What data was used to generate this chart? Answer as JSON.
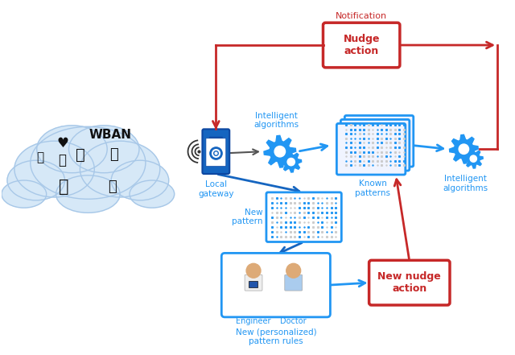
{
  "bg_color": "#ffffff",
  "blue_color": "#1565C0",
  "light_blue": "#2196F3",
  "red_color": "#C62828",
  "cloud_color": "#D6E8F7",
  "cloud_border": "#A8C8E8",
  "cloud_text": "WBAN",
  "box_nudge_label": "Nudge\naction",
  "box_new_nudge_label": "New nudge\naction",
  "label_local_gateway": "Local\ngateway",
  "label_intelligent_top": "Intelligent\nalgorithms",
  "label_known_patterns": "Known\npatterns",
  "label_intelligent_right": "Intelligent\nalgorithms",
  "label_new_pattern": "New\npattern",
  "label_engineer": "Engineer",
  "label_doctor": "Doctor",
  "label_personalized": "New (personalized)\npattern rules",
  "label_notification": "Notification"
}
